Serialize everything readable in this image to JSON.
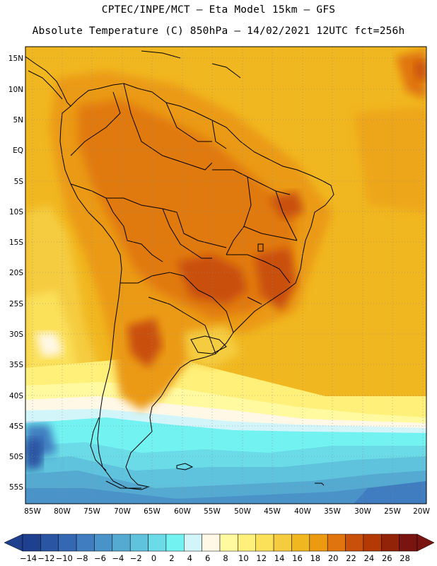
{
  "header": {
    "line1": "CPTEC/INPE/MCT –  Eta Model 15km – GFS",
    "line2": "Absolute Temperature (C) 850hPa – 14/02/2021 12UTC fct=256h"
  },
  "axes": {
    "lat_labels": [
      "15N",
      "10N",
      "5N",
      "EQ",
      "5S",
      "10S",
      "15S",
      "20S",
      "25S",
      "30S",
      "35S",
      "40S",
      "45S",
      "50S",
      "55S"
    ],
    "lon_labels": [
      "85W",
      "80W",
      "75W",
      "70W",
      "65W",
      "60W",
      "55W",
      "50W",
      "45W",
      "40W",
      "35W",
      "30W",
      "25W",
      "20W"
    ]
  },
  "colorbar": {
    "labels": [
      "-14",
      "-12",
      "-10",
      "-8",
      "-6",
      "-4",
      "-2",
      "0",
      "2",
      "4",
      "6",
      "8",
      "10",
      "12",
      "14",
      "16",
      "18",
      "20",
      "22",
      "24",
      "26",
      "28"
    ],
    "colors": [
      "#1f3f8f",
      "#2a55a3",
      "#3568b3",
      "#3f7dc0",
      "#4993c9",
      "#55aad2",
      "#5fc3dd",
      "#6adbe7",
      "#73f2f2",
      "#d2f5fa",
      "#fff8e6",
      "#fffaa0",
      "#fff07a",
      "#fbe05a",
      "#f5cc40",
      "#f1b720",
      "#eb9a12",
      "#e07510",
      "#c9500a",
      "#b33a05",
      "#922208",
      "#7a1410"
    ]
  },
  "chart_data": {
    "type": "heatmap",
    "title": "Absolute Temperature (C) 850hPa",
    "model": "Eta Model 15km – GFS",
    "valid": "14/02/2021 12UTC",
    "forecast_hour": "fct=256h",
    "units": "C",
    "x_range": [
      -85,
      -20
    ],
    "y_range": [
      -57,
      16
    ],
    "color_levels": [
      -14,
      -12,
      -10,
      -8,
      -6,
      -4,
      -2,
      0,
      2,
      4,
      6,
      8,
      10,
      12,
      14,
      16,
      18,
      20,
      22,
      24,
      26,
      28
    ]
  }
}
